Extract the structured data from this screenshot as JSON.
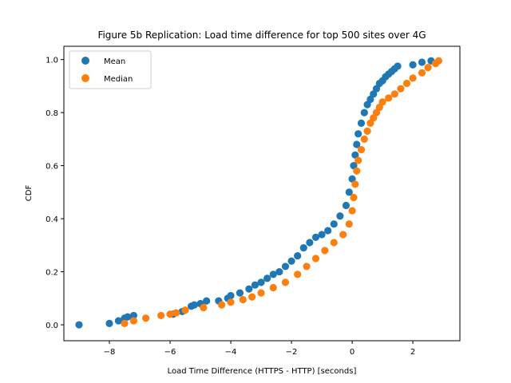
{
  "chart_data": {
    "type": "scatter",
    "title": "Figure 5b Replication: Load time difference for top 500 sites over 4G",
    "xlabel": "Load Time Difference (HTTPS - HTTP) [seconds]",
    "ylabel": "CDF",
    "xlim": [
      -9.5,
      3.55
    ],
    "ylim": [
      -0.06,
      1.05
    ],
    "xticks": [
      -8,
      -6,
      -4,
      -2,
      0,
      2
    ],
    "xtick_labels": [
      "−8",
      "−6",
      "−4",
      "−2",
      "0",
      "2"
    ],
    "yticks": [
      0.0,
      0.2,
      0.4,
      0.6,
      0.8,
      1.0
    ],
    "ytick_labels": [
      "0.0",
      "0.2",
      "0.4",
      "0.6",
      "0.8",
      "1.0"
    ],
    "grid": false,
    "legend_position": "upper-left",
    "colors": {
      "Mean": "#1f77b4",
      "Median": "#ff7f0e"
    },
    "series": [
      {
        "name": "Mean",
        "x": [
          -9.0,
          -8.0,
          -7.7,
          -7.5,
          -7.4,
          -7.2,
          -5.9,
          -5.6,
          -5.3,
          -5.2,
          -5.0,
          -4.8,
          -4.4,
          -4.1,
          -4.0,
          -3.7,
          -3.4,
          -3.2,
          -3.0,
          -2.8,
          -2.6,
          -2.4,
          -2.2,
          -2.0,
          -1.8,
          -1.6,
          -1.4,
          -1.2,
          -1.0,
          -0.8,
          -0.6,
          -0.4,
          -0.2,
          -0.1,
          0.0,
          0.05,
          0.1,
          0.15,
          0.2,
          0.3,
          0.4,
          0.5,
          0.6,
          0.7,
          0.8,
          0.9,
          1.0,
          1.1,
          1.2,
          1.3,
          1.4,
          1.5,
          2.0,
          2.3,
          2.6
        ],
        "y": [
          0.0,
          0.005,
          0.015,
          0.025,
          0.03,
          0.035,
          0.04,
          0.05,
          0.07,
          0.075,
          0.08,
          0.09,
          0.09,
          0.1,
          0.11,
          0.12,
          0.135,
          0.15,
          0.16,
          0.175,
          0.19,
          0.2,
          0.22,
          0.24,
          0.26,
          0.29,
          0.31,
          0.33,
          0.34,
          0.355,
          0.38,
          0.41,
          0.45,
          0.5,
          0.55,
          0.6,
          0.64,
          0.68,
          0.72,
          0.76,
          0.8,
          0.83,
          0.85,
          0.87,
          0.89,
          0.91,
          0.92,
          0.935,
          0.945,
          0.955,
          0.965,
          0.975,
          0.98,
          0.99,
          0.995
        ]
      },
      {
        "name": "Median",
        "x": [
          -7.5,
          -7.2,
          -6.8,
          -6.3,
          -6.0,
          -5.8,
          -5.5,
          -4.9,
          -4.3,
          -4.0,
          -3.6,
          -3.3,
          -3.0,
          -2.6,
          -2.2,
          -1.8,
          -1.5,
          -1.2,
          -0.9,
          -0.6,
          -0.3,
          -0.1,
          0.0,
          0.05,
          0.1,
          0.15,
          0.2,
          0.3,
          0.4,
          0.5,
          0.6,
          0.7,
          0.8,
          0.9,
          1.0,
          1.2,
          1.4,
          1.6,
          1.8,
          2.0,
          2.3,
          2.5,
          2.75,
          2.85
        ],
        "y": [
          0.005,
          0.015,
          0.025,
          0.035,
          0.04,
          0.045,
          0.055,
          0.065,
          0.075,
          0.085,
          0.095,
          0.105,
          0.12,
          0.14,
          0.16,
          0.19,
          0.22,
          0.25,
          0.28,
          0.31,
          0.34,
          0.38,
          0.43,
          0.48,
          0.53,
          0.58,
          0.62,
          0.66,
          0.7,
          0.73,
          0.76,
          0.78,
          0.8,
          0.82,
          0.84,
          0.855,
          0.87,
          0.89,
          0.91,
          0.93,
          0.95,
          0.97,
          0.985,
          0.995
        ]
      }
    ]
  }
}
